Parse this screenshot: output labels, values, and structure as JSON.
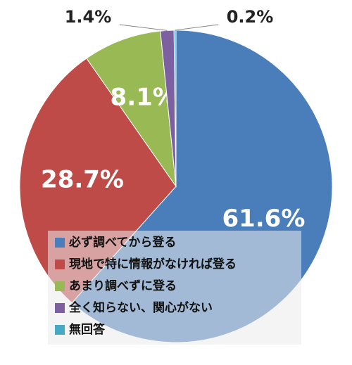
{
  "chart_data": {
    "type": "pie",
    "categories": [
      "必ず調べてから登る",
      "現地で特に情報がなければ登る",
      "あまり調べずに登る",
      "全く知らない、関心がない",
      "無回答"
    ],
    "values": [
      61.6,
      28.7,
      8.1,
      1.4,
      0.2
    ],
    "value_labels": [
      "61.6%",
      "28.7%",
      "8.1%",
      "1.4%",
      "0.2%"
    ],
    "colors": [
      "#4a7ebb",
      "#be4b48",
      "#98b954",
      "#7d60a0",
      "#46aac5"
    ]
  }
}
